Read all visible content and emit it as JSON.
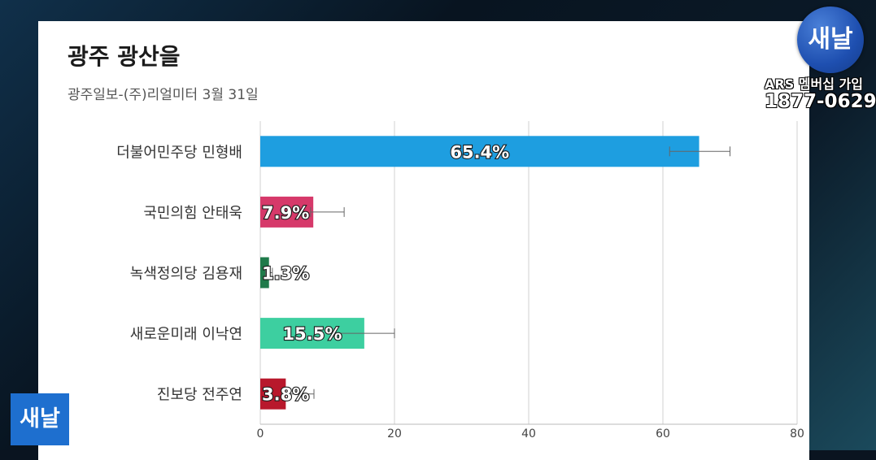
{
  "overlay": {
    "logo_text": "새날",
    "ars_line": "ARS 멤버십 가입",
    "phone": "1877-0629",
    "logo_bottom_text": "새날"
  },
  "chart_data": {
    "type": "bar",
    "orientation": "horizontal",
    "title": "광주 광산을",
    "subtitle": "광주일보-(주)리얼미터 3월 31일",
    "categories": [
      "더불어민주당 민형배",
      "국민의힘 안태욱",
      "녹색정의당 김용재",
      "새로운미래 이낙연",
      "진보당 전주연"
    ],
    "values": [
      65.4,
      7.9,
      1.3,
      15.5,
      3.8
    ],
    "data_labels": [
      "65.4%",
      "7.9%",
      "1.3%",
      "15.5%",
      "3.8%"
    ],
    "error_bars": [
      [
        61.0,
        70.0
      ],
      [
        7.5,
        12.5
      ],
      [
        0.8,
        1.8
      ],
      [
        11.0,
        20.0
      ],
      [
        3.2,
        8.0
      ]
    ],
    "colors": [
      "#1e9ee0",
      "#d6396a",
      "#1f7a4a",
      "#3dcfa0",
      "#b8182c"
    ],
    "xlim": [
      0,
      80
    ],
    "xticks": [
      0,
      20,
      40,
      60,
      80
    ],
    "grid": true
  }
}
